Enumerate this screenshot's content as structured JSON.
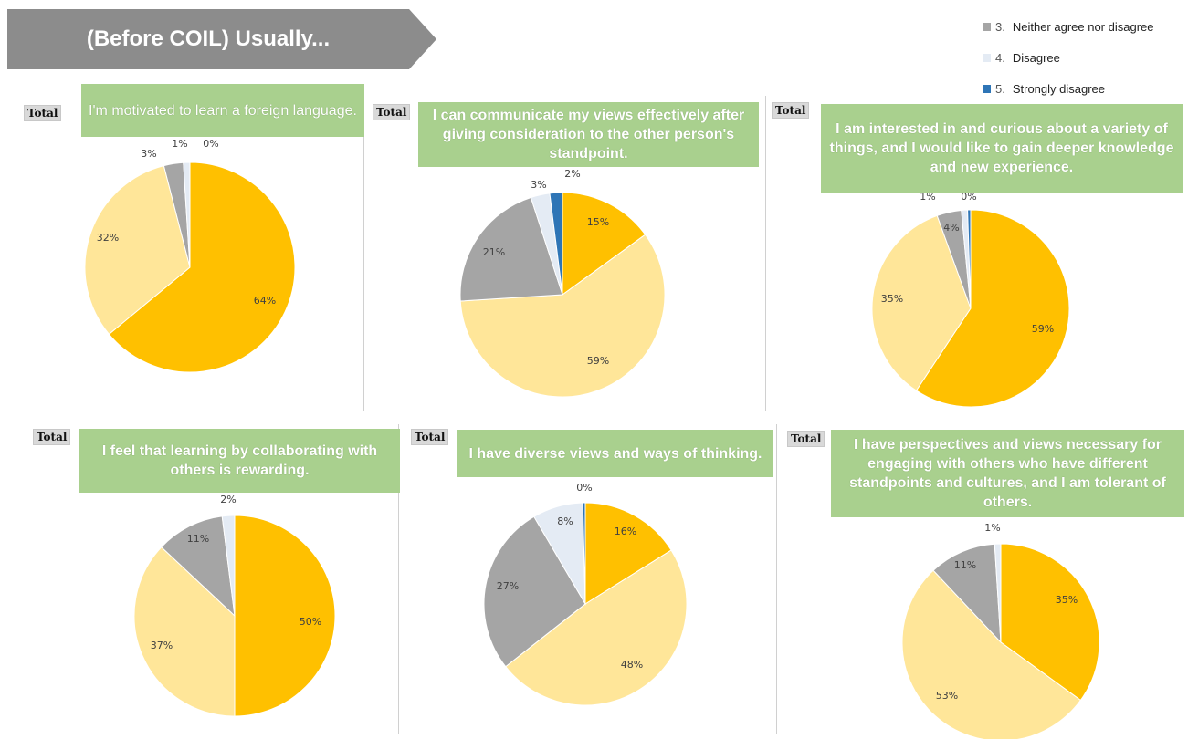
{
  "header": {
    "title": "(Before COIL) Usually...",
    "color": "#8c8c8c"
  },
  "legend": [
    {
      "num": "3.",
      "label": "Neither agree nor disagree",
      "color": "#a5a5a5"
    },
    {
      "num": "4.",
      "label": "Disagree",
      "color": "#e4ebf4"
    },
    {
      "num": "5.",
      "label": "Strongly disagree",
      "color": "#2e75b6"
    }
  ],
  "colors": {
    "strongly_agree": "#ffc000",
    "agree": "#ffe699",
    "neither": "#a5a5a5",
    "disagree": "#e4ebf4",
    "strongly_disagree": "#2e75b6",
    "title_bg": "#a9d08e"
  },
  "total_label": "Total",
  "chart_data": [
    {
      "type": "pie",
      "title": "I'm motivated to learn a foreign language.",
      "labels": [
        "64%",
        "32%",
        "3%",
        "1%",
        "0%"
      ],
      "values": [
        64,
        32,
        3,
        1,
        0
      ]
    },
    {
      "type": "pie",
      "title": "I can communicate my views effectively after giving consideration to the other person's standpoint.",
      "labels": [
        "15%",
        "59%",
        "21%",
        "3%",
        "2%"
      ],
      "values": [
        15,
        59,
        21,
        3,
        2
      ]
    },
    {
      "type": "pie",
      "title": "I am interested in and curious about a variety of things, and I would like to gain deeper knowledge and new experience.",
      "labels": [
        "59%",
        "35%",
        "4%",
        "1%",
        "0%"
      ],
      "values": [
        59,
        35,
        4,
        1,
        0.5
      ]
    },
    {
      "type": "pie",
      "title": "I feel that learning by collaborating with others is rewarding.",
      "labels": [
        "50%",
        "37%",
        "11%",
        "2%"
      ],
      "values": [
        50,
        37,
        11,
        2
      ]
    },
    {
      "type": "pie",
      "title": "I have diverse views and ways of thinking.",
      "labels": [
        "16%",
        "48%",
        "27%",
        "8%",
        "0%"
      ],
      "values": [
        16,
        48,
        27,
        8,
        0.4
      ]
    },
    {
      "type": "pie",
      "title": "I have perspectives and views necessary for engaging with others who have different standpoints and cultures, and I am tolerant of others.",
      "labels": [
        "35%",
        "53%",
        "11%",
        "1%"
      ],
      "values": [
        35,
        53,
        11,
        1
      ]
    }
  ]
}
